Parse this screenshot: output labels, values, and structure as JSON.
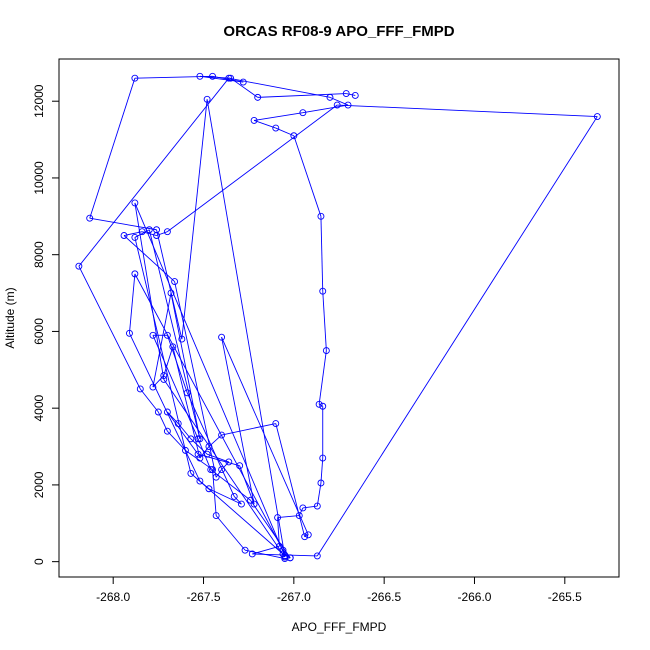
{
  "chart_data": {
    "type": "scatter",
    "title": "ORCAS RF08-9 APO_FFF_FMPD",
    "xlabel": "APO_FFF_FMPD",
    "ylabel": "Altitude (m)",
    "xlim": [
      -268.3,
      -265.2
    ],
    "ylim": [
      -400,
      13100
    ],
    "x_ticks": [
      -268.0,
      -267.5,
      -267.0,
      -266.5,
      -266.0,
      -265.5
    ],
    "x_tick_labels": [
      "-268.0",
      "-267.5",
      "-267.0",
      "-266.5",
      "-266.0",
      "-265.5"
    ],
    "y_ticks": [
      0,
      2000,
      4000,
      6000,
      8000,
      10000,
      12000
    ],
    "y_tick_labels": [
      "0",
      "2000",
      "4000",
      "6000",
      "8000",
      "10000",
      "12000"
    ],
    "grid": false,
    "legend": "none",
    "marker": "open-circle",
    "connect_points": true,
    "color": "#0000ff",
    "series": [
      {
        "x": [
          -267.02,
          -267.05,
          -267.27,
          -267.43,
          -267.45,
          -267.6,
          -267.7,
          -267.75,
          -267.85,
          -268.19,
          -267.36,
          -266.8,
          -266.7,
          -266.95,
          -267.22,
          -267.1,
          -267.0,
          -266.85,
          -266.84,
          -266.82,
          -266.86,
          -266.84,
          -266.84,
          -266.85,
          -266.87,
          -266.95,
          -266.97,
          -267.09,
          -267.08,
          -267.23,
          -266.87,
          -265.32,
          -266.76,
          -267.7,
          -267.76,
          -267.84,
          -267.94,
          -267.66,
          -267.43,
          -267.4,
          -267.36,
          -267.48,
          -267.57,
          -267.64,
          -267.7,
          -267.53,
          -267.3,
          -267.22,
          -267.4,
          -266.92,
          -266.94,
          -267.1,
          -267.4,
          -267.47,
          -267.52,
          -267.67,
          -267.72,
          -267.78,
          -267.68,
          -267.52,
          -267.8,
          -267.88,
          -267.57,
          -267.06,
          -267.02,
          -267.24,
          -267.46,
          -267.53,
          -267.78,
          -267.7,
          -267.59,
          -267.33,
          -267.29,
          -267.47,
          -267.52,
          -267.91,
          -267.88,
          -267.06,
          -267.05,
          -267.72,
          -267.88,
          -267.05,
          -267.48,
          -267.62,
          -267.76,
          -268.13,
          -267.88,
          -267.45,
          -267.28,
          -267.52,
          -267.35,
          -267.2,
          -266.71,
          -266.66
        ],
        "y": [
          100,
          80,
          300,
          1200,
          2400,
          2900,
          3400,
          3900,
          4500,
          7700,
          12600,
          12100,
          11900,
          11700,
          11500,
          11300,
          11100,
          9000,
          7050,
          5500,
          4100,
          4050,
          2700,
          2050,
          1450,
          1400,
          1200,
          1150,
          400,
          200,
          150,
          11600,
          11900,
          8600,
          8500,
          8600,
          8500,
          7300,
          2200,
          2400,
          2600,
          2800,
          3200,
          3600,
          3900,
          2800,
          2500,
          1500,
          5850,
          700,
          650,
          3600,
          3300,
          3000,
          2700,
          5600,
          4850,
          4550,
          7000,
          3200,
          8650,
          8450,
          2300,
          200,
          100,
          1600,
          2400,
          3200,
          5900,
          5900,
          4400,
          1700,
          1500,
          1900,
          2100,
          5950,
          7500,
          300,
          120,
          4750,
          9350,
          150,
          12050,
          5800,
          8650,
          8950,
          12600,
          12650,
          12500,
          12650,
          12600,
          12100,
          12200,
          12150
        ]
      }
    ]
  }
}
